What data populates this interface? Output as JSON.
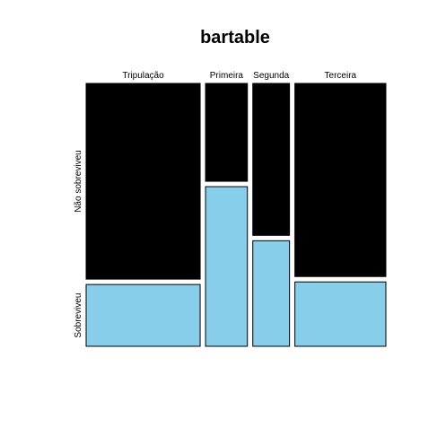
{
  "chart_data": {
    "type": "mosaic",
    "title": "bartable",
    "categories": [
      "Tripulação",
      "Primeira",
      "Segunda",
      "Terceira"
    ],
    "column_widths": [
      885,
      325,
      285,
      706
    ],
    "series": [
      {
        "name": "Não sobreviveu",
        "fractions": [
          0.76,
          0.38,
          0.59,
          0.75
        ],
        "color": "#000000"
      },
      {
        "name": "Sobreviveu",
        "fractions": [
          0.24,
          0.62,
          0.41,
          0.25
        ],
        "color": "#87CEEB"
      }
    ],
    "row_labels": [
      "Não sobreviveu",
      "Sobreviveu"
    ]
  }
}
